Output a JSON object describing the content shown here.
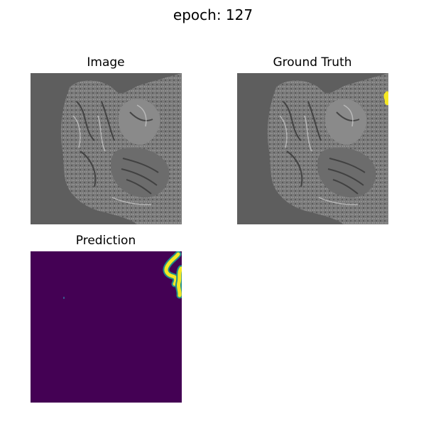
{
  "figure": {
    "title": "epoch: 127"
  },
  "panels": [
    {
      "title": "Image"
    },
    {
      "title": "Ground Truth"
    },
    {
      "title": "Prediction"
    }
  ],
  "colors": {
    "background_gray": "#5e5e5e",
    "mask_yellow": "#f5e824",
    "prediction_background": "#440154",
    "prediction_mid": "#21908c"
  }
}
